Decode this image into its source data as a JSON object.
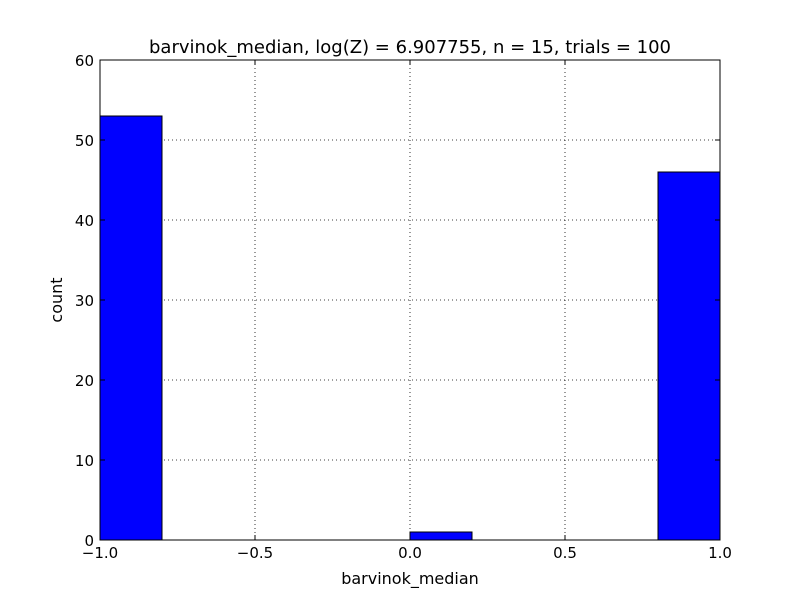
{
  "chart_data": {
    "type": "bar",
    "title": "barvinok_median, log(Z) = 6.907755, n = 15, trials = 100",
    "xlabel": "barvinok_median",
    "ylabel": "count",
    "xlim": [
      -1.0,
      1.0
    ],
    "ylim": [
      0,
      60
    ],
    "xticks": [
      "−1.0",
      "−0.5",
      "0.0",
      "0.5",
      "1.0"
    ],
    "xtick_values": [
      -1.0,
      -0.5,
      0.0,
      0.5,
      1.0
    ],
    "yticks": [
      "0",
      "10",
      "20",
      "30",
      "40",
      "50",
      "60"
    ],
    "ytick_values": [
      0,
      10,
      20,
      30,
      40,
      50,
      60
    ],
    "bins": [
      {
        "x0": -1.0,
        "x1": -0.8,
        "value": 53
      },
      {
        "x0": -0.8,
        "x1": -0.6,
        "value": 0
      },
      {
        "x0": -0.6,
        "x1": -0.4,
        "value": 0
      },
      {
        "x0": -0.4,
        "x1": -0.2,
        "value": 0
      },
      {
        "x0": -0.2,
        "x1": 0.0,
        "value": 0
      },
      {
        "x0": 0.0,
        "x1": 0.2,
        "value": 1
      },
      {
        "x0": 0.2,
        "x1": 0.4,
        "value": 0
      },
      {
        "x0": 0.4,
        "x1": 0.6,
        "value": 0
      },
      {
        "x0": 0.6,
        "x1": 0.8,
        "value": 0
      },
      {
        "x0": 0.8,
        "x1": 1.0,
        "value": 46
      }
    ],
    "grid": true,
    "bar_color": "#0000ff",
    "edge_color": "#000000"
  }
}
